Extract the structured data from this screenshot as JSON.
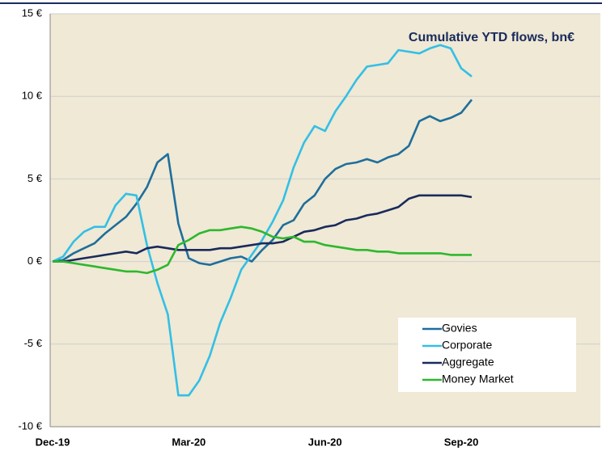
{
  "chart_data": {
    "type": "line",
    "annotation": "Cumulative YTD flows, bn€",
    "categories": [
      "Dec-19",
      null,
      null,
      null,
      null,
      null,
      null,
      null,
      null,
      null,
      null,
      null,
      null,
      "Mar-20",
      null,
      null,
      null,
      null,
      null,
      null,
      null,
      null,
      null,
      null,
      null,
      null,
      "Jun-20",
      null,
      null,
      null,
      null,
      null,
      null,
      null,
      null,
      null,
      null,
      null,
      null,
      "Sep-20",
      null
    ],
    "series": [
      {
        "name": "Govies",
        "color": "#1f6e9c",
        "values": [
          0,
          0.1,
          0.5,
          0.8,
          1.1,
          1.7,
          2.2,
          2.7,
          3.5,
          4.5,
          6.0,
          6.5,
          2.3,
          0.2,
          -0.1,
          -0.2,
          0,
          0.2,
          0.3,
          0,
          0.7,
          1.3,
          2.2,
          2.5,
          3.5,
          4.0,
          5.0,
          5.6,
          5.9,
          6.0,
          6.2,
          6.0,
          6.3,
          6.5,
          7.0,
          8.5,
          8.8,
          8.5,
          8.7,
          9.0,
          9.8
        ]
      },
      {
        "name": "Corporate",
        "color": "#33bfe6",
        "values": [
          0,
          0.3,
          1.2,
          1.8,
          2.1,
          2.1,
          3.4,
          4.1,
          4.0,
          1.0,
          -1.3,
          -3.2,
          -8.1,
          -8.1,
          -7.2,
          -5.7,
          -3.7,
          -2.2,
          -0.5,
          0.4,
          1.3,
          2.4,
          3.7,
          5.7,
          7.2,
          8.2,
          7.9,
          9.1,
          10.0,
          11.0,
          11.8,
          11.9,
          12.0,
          12.8,
          12.7,
          12.6,
          12.9,
          13.1,
          12.9,
          11.7,
          11.2
        ]
      },
      {
        "name": "Aggregate",
        "color": "#1a2a5c",
        "values": [
          0,
          0,
          0.1,
          0.2,
          0.3,
          0.4,
          0.5,
          0.6,
          0.5,
          0.8,
          0.9,
          0.8,
          0.7,
          0.7,
          0.7,
          0.7,
          0.8,
          0.8,
          0.9,
          1.0,
          1.1,
          1.1,
          1.2,
          1.5,
          1.8,
          1.9,
          2.1,
          2.2,
          2.5,
          2.6,
          2.8,
          2.9,
          3.1,
          3.3,
          3.8,
          4.0,
          4.0,
          4.0,
          4.0,
          4.0,
          3.9
        ]
      },
      {
        "name": "Money Market",
        "color": "#2db82d",
        "values": [
          0,
          0,
          -0.1,
          -0.2,
          -0.3,
          -0.4,
          -0.5,
          -0.6,
          -0.6,
          -0.7,
          -0.5,
          -0.2,
          1.0,
          1.3,
          1.7,
          1.9,
          1.9,
          2.0,
          2.1,
          2.0,
          1.8,
          1.5,
          1.4,
          1.5,
          1.2,
          1.2,
          1.0,
          0.9,
          0.8,
          0.7,
          0.7,
          0.6,
          0.6,
          0.5,
          0.5,
          0.5,
          0.5,
          0.5,
          0.4,
          0.4,
          0.4
        ]
      }
    ],
    "ylim": [
      -10,
      15
    ],
    "yticks": [
      {
        "value": -10,
        "label": "-10 €"
      },
      {
        "value": -5,
        "label": "-5 €"
      },
      {
        "value": 0,
        "label": "0 €"
      },
      {
        "value": 5,
        "label": "5 €"
      },
      {
        "value": 10,
        "label": "10 €"
      },
      {
        "value": 15,
        "label": "15 €"
      }
    ],
    "grid": true,
    "legend": "lower right"
  }
}
